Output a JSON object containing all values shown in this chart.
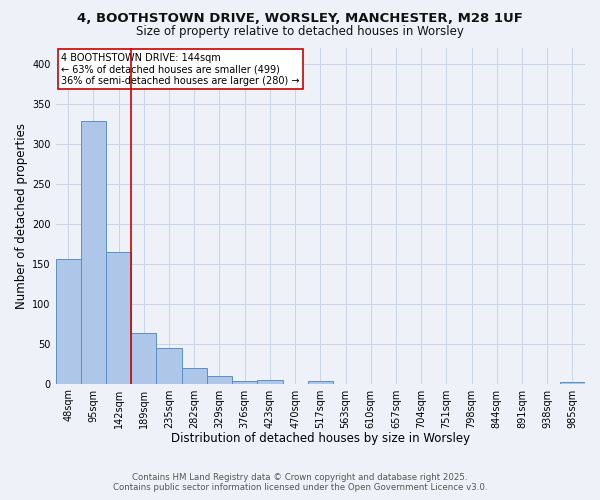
{
  "title1": "4, BOOTHSTOWN DRIVE, WORSLEY, MANCHESTER, M28 1UF",
  "title2": "Size of property relative to detached houses in Worsley",
  "xlabel": "Distribution of detached houses by size in Worsley",
  "ylabel": "Number of detached properties",
  "bar_labels": [
    "48sqm",
    "95sqm",
    "142sqm",
    "189sqm",
    "235sqm",
    "282sqm",
    "329sqm",
    "376sqm",
    "423sqm",
    "470sqm",
    "517sqm",
    "563sqm",
    "610sqm",
    "657sqm",
    "704sqm",
    "751sqm",
    "798sqm",
    "844sqm",
    "891sqm",
    "938sqm",
    "985sqm"
  ],
  "bar_values": [
    156,
    328,
    164,
    63,
    44,
    20,
    10,
    3,
    4,
    0,
    3,
    0,
    0,
    0,
    0,
    0,
    0,
    0,
    0,
    0,
    2
  ],
  "bar_color": "#aec6e8",
  "bar_edge_color": "#5a8fc2",
  "highlight_bar_idx": 2,
  "highlight_color": "#cc0000",
  "annotation_text": "4 BOOTHSTOWN DRIVE: 144sqm\n← 63% of detached houses are smaller (499)\n36% of semi-detached houses are larger (280) →",
  "annotation_box_color": "#ffffff",
  "annotation_box_edge": "#cc0000",
  "footer1": "Contains HM Land Registry data © Crown copyright and database right 2025.",
  "footer2": "Contains public sector information licensed under the Open Government Licence v3.0.",
  "bg_color": "#eef2f8",
  "grid_color": "#c8d4e8",
  "ylim": [
    0,
    420
  ],
  "yticks": [
    0,
    50,
    100,
    150,
    200,
    250,
    300,
    350,
    400
  ]
}
